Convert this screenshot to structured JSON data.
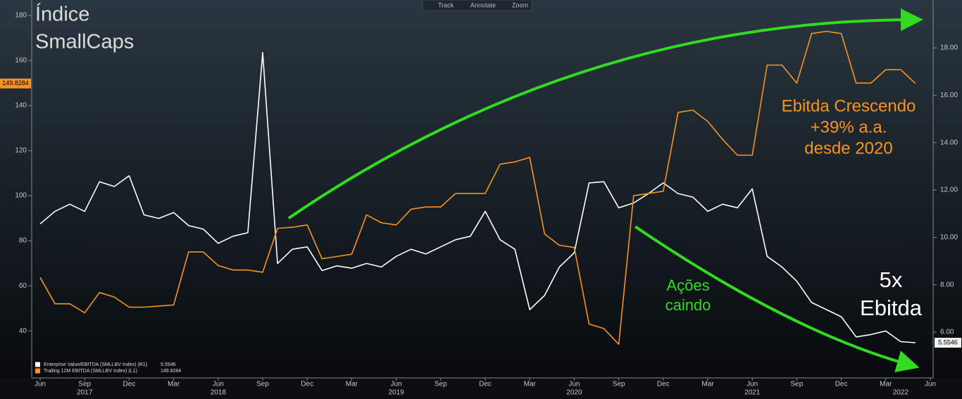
{
  "chart_data": {
    "type": "line",
    "annotations": {
      "title_line1": "Índice",
      "title_line2": "SmallCaps",
      "ebitda_line1": "Ebitda Crescendo",
      "ebitda_line2": "+39% a.a.",
      "ebitda_line3": "desde 2020",
      "stocks_line1": "Ações",
      "stocks_line2": "caindo",
      "multiple_line1": "5x",
      "multiple_line2": "Ebitda"
    },
    "toolbar": [
      "Track",
      "Annotate",
      "Zoom"
    ],
    "x": [
      "2017-06",
      "2017-07",
      "2017-08",
      "2017-09",
      "2017-10",
      "2017-11",
      "2017-12",
      "2018-01",
      "2018-02",
      "2018-03",
      "2018-04",
      "2018-05",
      "2018-06",
      "2018-07",
      "2018-08",
      "2018-09",
      "2018-10",
      "2018-11",
      "2018-12",
      "2019-01",
      "2019-02",
      "2019-03",
      "2019-04",
      "2019-05",
      "2019-06",
      "2019-07",
      "2019-08",
      "2019-09",
      "2019-10",
      "2019-11",
      "2019-12",
      "2020-01",
      "2020-02",
      "2020-03",
      "2020-04",
      "2020-05",
      "2020-06",
      "2020-07",
      "2020-08",
      "2020-09",
      "2020-10",
      "2020-11",
      "2020-12",
      "2021-01",
      "2021-02",
      "2021-03",
      "2021-04",
      "2021-05",
      "2021-06",
      "2021-07",
      "2021-08",
      "2021-09",
      "2021-10",
      "2021-11",
      "2021-12",
      "2022-01",
      "2022-02",
      "2022-03",
      "2022-04",
      "2022-05"
    ],
    "xlim": [
      "2017-06",
      "2022-06"
    ],
    "xticks": [
      {
        "value": "2017-06",
        "label": "Jun"
      },
      {
        "value": "2017-09",
        "label": "Sep"
      },
      {
        "value": "2017-12",
        "label": "Dec"
      },
      {
        "value": "2018-03",
        "label": "Mar"
      },
      {
        "value": "2018-06",
        "label": "Jun"
      },
      {
        "value": "2018-09",
        "label": "Sep"
      },
      {
        "value": "2018-12",
        "label": "Dec"
      },
      {
        "value": "2019-03",
        "label": "Mar"
      },
      {
        "value": "2019-06",
        "label": "Jun"
      },
      {
        "value": "2019-09",
        "label": "Sep"
      },
      {
        "value": "2019-12",
        "label": "Dec"
      },
      {
        "value": "2020-03",
        "label": "Mar"
      },
      {
        "value": "2020-06",
        "label": "Jun"
      },
      {
        "value": "2020-09",
        "label": "Sep"
      },
      {
        "value": "2020-12",
        "label": "Dec"
      },
      {
        "value": "2021-03",
        "label": "Mar"
      },
      {
        "value": "2021-06",
        "label": "Jun"
      },
      {
        "value": "2021-09",
        "label": "Sep"
      },
      {
        "value": "2021-12",
        "label": "Dec"
      },
      {
        "value": "2022-03",
        "label": "Mar"
      },
      {
        "value": "2022-06",
        "label": "Jun"
      }
    ],
    "year_labels": [
      {
        "value": "2017-09",
        "label": "2017"
      },
      {
        "value": "2018-06",
        "label": "2018"
      },
      {
        "value": "2019-06",
        "label": "2019"
      },
      {
        "value": "2020-06",
        "label": "2020"
      },
      {
        "value": "2021-06",
        "label": "2021"
      },
      {
        "value": "2022-04",
        "label": "2022"
      }
    ],
    "ylim": [
      19.1,
      186.9
    ],
    "yticks": [
      40,
      60,
      80,
      100,
      120,
      140,
      160,
      180
    ],
    "y2lim": [
      4.07,
      20.02
    ],
    "y2ticks": [
      {
        "value": 6,
        "label": "6.00"
      },
      {
        "value": 8,
        "label": "8.00"
      },
      {
        "value": 10,
        "label": "10.00"
      },
      {
        "value": 12,
        "label": "12.00"
      },
      {
        "value": 14,
        "label": "14.00"
      },
      {
        "value": 16,
        "label": "16.00"
      },
      {
        "value": 18,
        "label": "18.00"
      }
    ],
    "grid": false,
    "legend": "bottom-left",
    "series": [
      {
        "name": "Enterprise Value/EBITDA (SMLLBV Index) (R1)",
        "color": "#ffffff",
        "axis": "y2",
        "value_label": "5.5546",
        "values": [
          10.57,
          11.1,
          11.4,
          11.1,
          12.35,
          12.15,
          12.6,
          10.95,
          10.8,
          11.05,
          10.5,
          10.35,
          9.75,
          10.05,
          10.2,
          17.8,
          8.9,
          9.5,
          9.6,
          8.6,
          8.8,
          8.7,
          8.9,
          8.75,
          9.2,
          9.5,
          9.3,
          9.6,
          9.9,
          10.05,
          11.1,
          9.9,
          9.5,
          6.95,
          7.55,
          8.75,
          9.35,
          12.3,
          12.35,
          11.25,
          11.45,
          11.85,
          12.3,
          11.85,
          11.7,
          11.1,
          11.4,
          11.25,
          12.05,
          9.2,
          8.75,
          8.15,
          7.25,
          6.95,
          6.65,
          5.8,
          5.9,
          6.05,
          5.6,
          5.5546
        ]
      },
      {
        "name": "Trailing 12M EBITDA (SMLLBV Index) (L1)",
        "color": "#f7931e",
        "value_label": "149.8284",
        "values": [
          63.7,
          52,
          52,
          48,
          57,
          55,
          50.5,
          50.5,
          51,
          51.5,
          75,
          75,
          69,
          67,
          67,
          66,
          85.5,
          86,
          87,
          72,
          73,
          74,
          91.5,
          88,
          87,
          94,
          95,
          95,
          101,
          101,
          101,
          114,
          115,
          117,
          83,
          78,
          77,
          43,
          41,
          34,
          100,
          101,
          102,
          137,
          138,
          133,
          125,
          118,
          118,
          158,
          158,
          150,
          172,
          173,
          172,
          150,
          150,
          156,
          156,
          149.8284
        ]
      }
    ]
  }
}
